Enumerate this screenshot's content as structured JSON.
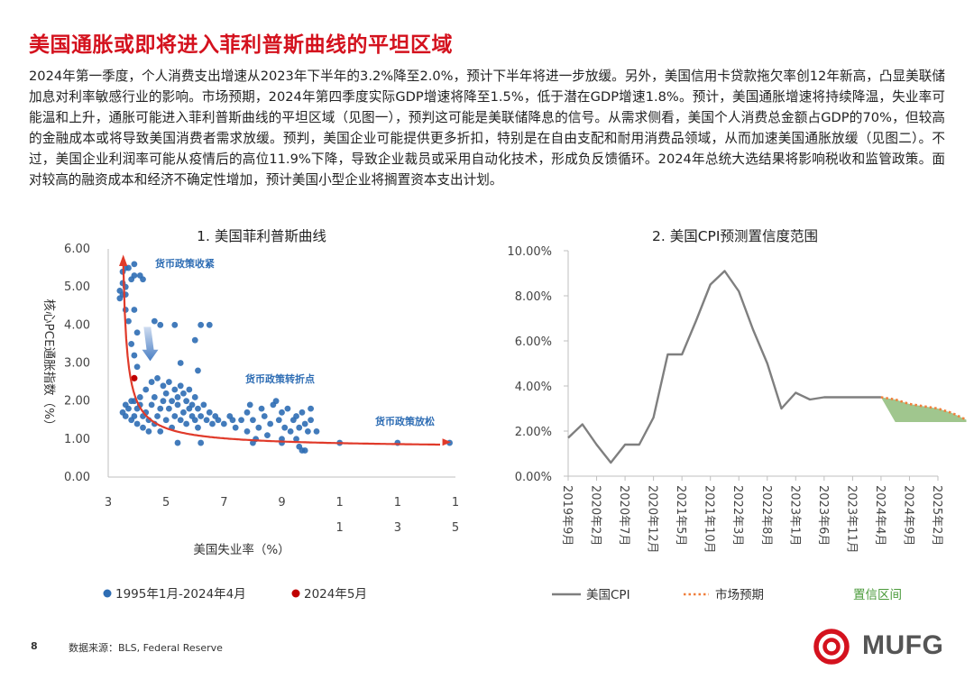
{
  "page": {
    "title": "美国通胀或即将进入菲利普斯曲线的平坦区域",
    "paragraph": "2024年第一季度，个人消费支出增速从2023年下半年的3.2%降至2.0%，预计下半年将进一步放缓。另外，美国信用卡贷款拖欠率创12年新高，凸显美联储加息对利率敏感行业的影响。市场预期，2024年第四季度实际GDP增速将降至1.5%，低于潜在GDP增速1.8%。预计，美国通胀增速将持续降温，失业率可能温和上升，通胀可能进入菲利普斯曲线的平坦区域（见图一），预判这可能是美联储降息的信号。从需求侧看，美国个人消费总金额占GDP的70%，但较高的金融成本或将导致美国消费者需求放缓。预判，美国企业可能提供更多折扣，特别是在自由支配和耐用消费品领域，从而加速美国通胀放缓（见图二）。不过，美国企业利润率可能从疫情后的高位11.9%下降，导致企业裁员或采用自动化技术，形成负反馈循环。2024年总统大选结果将影响税收和监管政策。面对较高的融资成本和经济不确定性增加，预计美国小型企业将搁置资本支出计划。",
    "page_number": "8",
    "source": "数据来源：BLS, Federal Reserve",
    "logo_text": "MUFG",
    "colors": {
      "accent": "#d4121e",
      "scatter": "#2e6db4",
      "highlight": "#c00000",
      "cpi_line": "#7f7f7f",
      "forecast": "#f07f3c",
      "band": "#8fbc7a",
      "band_label": "#4a9a3a"
    }
  },
  "chart_data": [
    {
      "type": "scatter",
      "title": "1. 美国菲利普斯曲线",
      "xlabel": "美国失业率（%）",
      "ylabel": "核心PCE通胀指数（%）",
      "xlim": [
        3,
        15
      ],
      "ylim": [
        0,
        6
      ],
      "x_ticks": [
        "3",
        "5",
        "7",
        "9",
        "11",
        "13",
        "15"
      ],
      "y_ticks": [
        "0.00",
        "1.00",
        "2.00",
        "3.00",
        "4.00",
        "5.00",
        "6.00"
      ],
      "annotations": [
        "货币政策收紧",
        "货币政策转折点",
        "货币政策放松"
      ],
      "legend_position": "bottom",
      "series": [
        {
          "name": "1995年1月-2024年4月",
          "points": [
            [
              3.5,
              5.4
            ],
            [
              3.5,
              5.1
            ],
            [
              3.4,
              4.9
            ],
            [
              3.4,
              4.7
            ],
            [
              3.5,
              4.8
            ],
            [
              3.6,
              5.0
            ],
            [
              3.6,
              4.8
            ],
            [
              3.7,
              5.5
            ],
            [
              3.8,
              5.2
            ],
            [
              3.6,
              5.5
            ],
            [
              3.9,
              5.6
            ],
            [
              3.9,
              5.3
            ],
            [
              4.1,
              5.3
            ],
            [
              4.2,
              5.2
            ],
            [
              3.9,
              4.4
            ],
            [
              3.6,
              4.4
            ],
            [
              3.7,
              4.1
            ],
            [
              4.0,
              3.8
            ],
            [
              3.8,
              3.5
            ],
            [
              3.9,
              3.2
            ],
            [
              4.0,
              2.9
            ],
            [
              4.6,
              4.1
            ],
            [
              4.8,
              4.0
            ],
            [
              5.3,
              4.0
            ],
            [
              6.0,
              3.6
            ],
            [
              6.5,
              4.0
            ],
            [
              6.2,
              4.0
            ],
            [
              5.5,
              3.0
            ],
            [
              6.1,
              2.8
            ],
            [
              3.5,
              1.7
            ],
            [
              3.6,
              1.6
            ],
            [
              3.6,
              1.9
            ],
            [
              3.7,
              1.8
            ],
            [
              3.8,
              1.5
            ],
            [
              3.8,
              2.0
            ],
            [
              3.9,
              1.6
            ],
            [
              3.9,
              2.0
            ],
            [
              4.0,
              1.4
            ],
            [
              4.0,
              1.8
            ],
            [
              4.1,
              1.9
            ],
            [
              4.1,
              2.1
            ],
            [
              4.2,
              1.3
            ],
            [
              4.2,
              1.6
            ],
            [
              4.3,
              1.7
            ],
            [
              4.3,
              2.3
            ],
            [
              4.4,
              1.2
            ],
            [
              4.4,
              1.5
            ],
            [
              4.5,
              1.9
            ],
            [
              4.5,
              2.5
            ],
            [
              4.6,
              1.4
            ],
            [
              4.6,
              2.1
            ],
            [
              4.7,
              1.6
            ],
            [
              4.7,
              2.6
            ],
            [
              4.8,
              1.2
            ],
            [
              4.8,
              1.8
            ],
            [
              4.9,
              2.4
            ],
            [
              4.9,
              2.0
            ],
            [
              5.0,
              1.5
            ],
            [
              5.0,
              2.2
            ],
            [
              5.1,
              1.8
            ],
            [
              5.1,
              2.5
            ],
            [
              5.2,
              1.3
            ],
            [
              5.2,
              2.0
            ],
            [
              5.3,
              1.6
            ],
            [
              5.3,
              2.3
            ],
            [
              5.4,
              1.9
            ],
            [
              5.4,
              2.1
            ],
            [
              5.5,
              1.5
            ],
            [
              5.5,
              2.4
            ],
            [
              5.6,
              1.7
            ],
            [
              5.6,
              2.2
            ],
            [
              5.7,
              1.4
            ],
            [
              5.7,
              2.0
            ],
            [
              5.8,
              1.8
            ],
            [
              5.8,
              2.3
            ],
            [
              5.9,
              1.6
            ],
            [
              5.9,
              1.9
            ],
            [
              6.0,
              1.5
            ],
            [
              6.0,
              2.1
            ],
            [
              6.1,
              1.3
            ],
            [
              6.1,
              1.8
            ],
            [
              6.2,
              1.6
            ],
            [
              6.3,
              1.9
            ],
            [
              6.4,
              1.5
            ],
            [
              6.5,
              1.7
            ],
            [
              6.6,
              1.4
            ],
            [
              6.7,
              1.6
            ],
            [
              6.8,
              1.5
            ],
            [
              7.0,
              1.4
            ],
            [
              7.2,
              1.6
            ],
            [
              7.3,
              1.5
            ],
            [
              7.4,
              1.3
            ],
            [
              7.6,
              1.5
            ],
            [
              7.8,
              1.7
            ],
            [
              7.8,
              1.2
            ],
            [
              7.9,
              1.9
            ],
            [
              8.0,
              1.5
            ],
            [
              8.1,
              1.0
            ],
            [
              8.2,
              1.3
            ],
            [
              8.3,
              1.8
            ],
            [
              8.4,
              1.6
            ],
            [
              8.5,
              1.1
            ],
            [
              8.6,
              1.4
            ],
            [
              8.7,
              1.9
            ],
            [
              8.8,
              2.0
            ],
            [
              8.9,
              1.5
            ],
            [
              9.0,
              1.0
            ],
            [
              9.0,
              1.7
            ],
            [
              9.1,
              1.3
            ],
            [
              9.2,
              1.8
            ],
            [
              9.3,
              1.2
            ],
            [
              9.4,
              1.5
            ],
            [
              9.5,
              1.0
            ],
            [
              9.5,
              1.6
            ],
            [
              9.6,
              1.3
            ],
            [
              9.6,
              0.8
            ],
            [
              9.7,
              1.7
            ],
            [
              9.8,
              1.4
            ],
            [
              9.8,
              0.7
            ],
            [
              9.9,
              1.2
            ],
            [
              10.0,
              1.5
            ],
            [
              10.0,
              1.8
            ],
            [
              10.2,
              1.2
            ],
            [
              11.0,
              0.9
            ],
            [
              13.0,
              0.9
            ],
            [
              14.8,
              0.9
            ],
            [
              5.4,
              0.9
            ],
            [
              6.2,
              0.9
            ],
            [
              8.0,
              0.9
            ],
            [
              9.0,
              0.9
            ],
            [
              9.7,
              0.7
            ]
          ]
        },
        {
          "name": "2024年5月",
          "points": [
            [
              3.9,
              2.6
            ]
          ]
        }
      ]
    },
    {
      "type": "line",
      "title": "2. 美国CPI预测置信度范围",
      "x": [
        "2019年9月",
        "2020年2月",
        "2020年7月",
        "2020年12月",
        "2021年5月",
        "2021年10月",
        "2022年3月",
        "2022年8月",
        "2023年1月",
        "2023年6月",
        "2023年11月",
        "2024年4月",
        "2024年9月",
        "2025年2月"
      ],
      "y_ticks": [
        "0.00%",
        "2.00%",
        "4.00%",
        "6.00%",
        "8.00%",
        "10.00%"
      ],
      "ylim": [
        0,
        10
      ],
      "legend_position": "bottom",
      "series": [
        {
          "name": "美国CPI",
          "x": [
            0,
            0.5,
            1,
            1.5,
            2,
            2.5,
            3,
            3.5,
            4,
            4.5,
            5,
            5.5,
            6,
            6.5,
            7,
            7.5,
            8,
            8.5,
            9,
            9.5,
            10,
            10.5,
            11
          ],
          "values": [
            1.7,
            2.3,
            1.4,
            0.6,
            1.4,
            1.4,
            2.6,
            5.4,
            5.4,
            6.9,
            8.5,
            9.1,
            8.2,
            6.5,
            5.0,
            3.0,
            3.7,
            3.4,
            3.5,
            3.5,
            3.5,
            3.5,
            3.5
          ]
        },
        {
          "name": "市场预期",
          "x": [
            11,
            11.5,
            12,
            12.5,
            13,
            13.5,
            14
          ],
          "values": [
            3.5,
            3.4,
            3.2,
            3.1,
            3.0,
            2.8,
            2.5
          ]
        },
        {
          "name": "置信区间",
          "x": [
            11,
            11.5,
            12,
            12.5,
            13,
            13.5,
            14
          ],
          "upper": [
            3.5,
            3.4,
            3.2,
            3.1,
            3.0,
            2.8,
            2.5
          ],
          "lower": [
            3.5,
            2.4,
            2.4,
            2.4,
            2.4,
            2.4,
            2.4
          ]
        }
      ]
    }
  ]
}
